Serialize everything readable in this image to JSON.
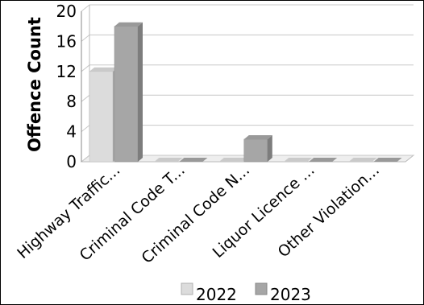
{
  "chart_data": {
    "type": "bar",
    "title": "",
    "xlabel": "",
    "ylabel": "Offence Count",
    "ylim": [
      0,
      20
    ],
    "yticks": [
      0,
      4,
      8,
      12,
      16,
      20
    ],
    "grid": true,
    "legend_position": "bottom",
    "categories": [
      "Highway Traffic...",
      "Criminal Code T...",
      "Criminal Code N...",
      "Liquor Licence ...",
      "Other Violation..."
    ],
    "series": [
      {
        "name": "2022",
        "values": [
          12,
          0,
          0,
          0,
          0
        ],
        "color": "#dcdcdc"
      },
      {
        "name": "2023",
        "values": [
          18,
          0,
          3,
          0,
          0
        ],
        "color": "#a6a6a6"
      }
    ]
  }
}
